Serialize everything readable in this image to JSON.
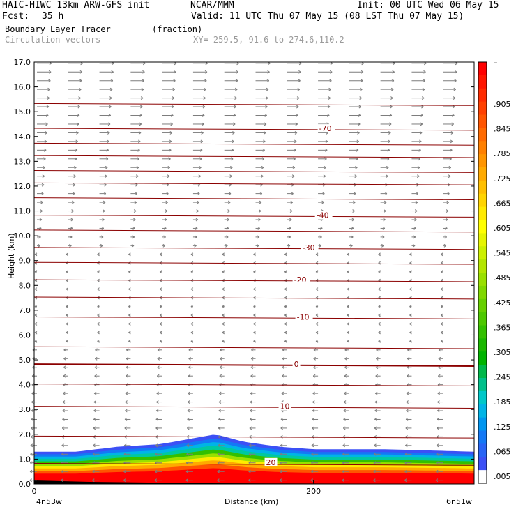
{
  "header": {
    "model_line": "HAIC-HIWC 13km ARW-GFS init",
    "org": "NCAR/MMM",
    "init": "Init: 00 UTC Wed 06 May 15",
    "fcst_label": "Fcst:",
    "fcst_value": "35 h",
    "valid": "Valid: 11 UTC Thu 07 May 15 (08 LST Thu 07 May 15)",
    "field": "Boundary Layer Tracer",
    "units": "(fraction)",
    "vectors": "Circulation vectors",
    "xy": "XY= 259.5, 91.6 to 274.6,110.2"
  },
  "colorbar": {
    "top_label": "–",
    "labels": [
      ".905",
      ".845",
      ".785",
      ".725",
      ".665",
      ".605",
      ".545",
      ".485",
      ".425",
      ".365",
      ".305",
      ".245",
      ".185",
      ".125",
      ".065",
      ".005"
    ],
    "colors": [
      "#ff0000",
      "#ff1500",
      "#ff2b00",
      "#ff4000",
      "#ff5500",
      "#ff6a00",
      "#ff8000",
      "#ff9500",
      "#ffaa00",
      "#ffbf00",
      "#ffd400",
      "#ffea00",
      "#ffff00",
      "#e6f500",
      "#ccf000",
      "#b3e600",
      "#99e000",
      "#80d800",
      "#66d000",
      "#4dc800",
      "#33c000",
      "#1ab800",
      "#00b400",
      "#00b84a",
      "#00c08a",
      "#00c8c8",
      "#00b4e6",
      "#0096f0",
      "#1478f5",
      "#2864f5",
      "#3c50f5",
      "#ffffff"
    ]
  },
  "chart_data": {
    "type": "contour",
    "title": "Boundary Layer Tracer",
    "xlabel": "Distance (km)",
    "ylabel": "Height (km)",
    "xlim": [
      0,
      315
    ],
    "ylim": [
      0.0,
      17.0
    ],
    "x_ticks": [
      "0",
      "200"
    ],
    "y_ticks": [
      "0.0",
      "1.0",
      "2.0",
      "3.0",
      "4.0",
      "5.0",
      "6.0",
      "7.0",
      "8.0",
      "9.0",
      "10.0",
      "11.0",
      "12.0",
      "13.0",
      "14.0",
      "15.0",
      "16.0",
      "17.0"
    ],
    "left_endpoint": "4n53w",
    "right_endpoint": "6n51w",
    "isotherms": [
      {
        "label": "20",
        "x": 166,
        "height_km": 0.85
      },
      {
        "label": "10",
        "x": 176,
        "height_km": 3.1
      },
      {
        "label": "0",
        "x": 186,
        "height_km": 4.8
      },
      {
        "label": "-10",
        "x": 188,
        "height_km": 6.7
      },
      {
        "label": "-20",
        "x": 186,
        "height_km": 8.2
      },
      {
        "label": "-30",
        "x": 192,
        "height_km": 9.5
      },
      {
        "label": "-40",
        "x": 202,
        "height_km": 10.8
      },
      {
        "label": "-70",
        "x": 204,
        "height_km": 14.3
      }
    ],
    "tracer_top_km": [
      [
        0,
        1.3
      ],
      [
        30,
        1.3
      ],
      [
        60,
        1.5
      ],
      [
        90,
        1.6
      ],
      [
        110,
        1.8
      ],
      [
        130,
        2.0
      ],
      [
        150,
        1.7
      ],
      [
        175,
        1.5
      ],
      [
        200,
        1.4
      ],
      [
        250,
        1.4
      ],
      [
        315,
        1.3
      ]
    ]
  }
}
